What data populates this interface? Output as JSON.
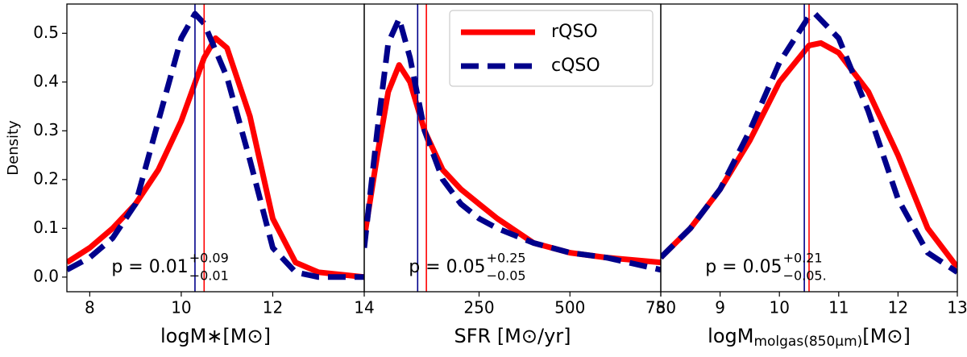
{
  "chart_data": [
    {
      "type": "line",
      "ylabel": "Density",
      "xlabel": [
        "logM∗[M⊙]"
      ],
      "xlim": [
        7.5,
        14
      ],
      "xticks": [
        8,
        10,
        12,
        14
      ],
      "ylim": [
        -0.03,
        0.56
      ],
      "yticks": [
        {
          "value": 0,
          "label": "0.0"
        },
        0.1,
        0.2,
        0.3,
        0.4,
        0.5
      ],
      "annotation": {
        "text": "p = 0.01",
        "sup": "+0.09",
        "sub": "−0.01"
      },
      "series": [
        {
          "name": "rQSO",
          "color": "#ff0000",
          "linestyle": "solid",
          "median": 10.5,
          "x": [
            7.5,
            8,
            8.5,
            9,
            9.5,
            10,
            10.5,
            10.75,
            11,
            11.5,
            12,
            12.5,
            13,
            14
          ],
          "values": [
            0.03,
            0.06,
            0.1,
            0.15,
            0.22,
            0.32,
            0.45,
            0.49,
            0.47,
            0.33,
            0.12,
            0.03,
            0.01,
            0.0
          ]
        },
        {
          "name": "cQSO",
          "color": "#00008b",
          "linestyle": "dashed",
          "median": 10.3,
          "x": [
            7.5,
            8,
            8.5,
            9,
            9.5,
            10,
            10.3,
            10.5,
            11,
            11.5,
            12,
            12.5,
            13,
            14
          ],
          "values": [
            0.015,
            0.04,
            0.08,
            0.15,
            0.32,
            0.49,
            0.54,
            0.52,
            0.41,
            0.24,
            0.06,
            0.01,
            0.0,
            0.0
          ]
        }
      ]
    },
    {
      "type": "line",
      "xlabel": [
        "SFR [M⊙/yr]"
      ],
      "legend": "upper right",
      "xlim": [
        -66,
        750
      ],
      "xticks": [
        250,
        500,
        750
      ],
      "ylim": [
        -0.03,
        0.56
      ],
      "annotation": {
        "text": "p = 0.05",
        "sup": "+0.25",
        "sub": "−0.05"
      },
      "series": [
        {
          "name": "rQSO",
          "color": "#ff0000",
          "linestyle": "solid",
          "median": 105,
          "x": [
            -66,
            -30,
            0,
            30,
            60,
            100,
            150,
            200,
            250,
            300,
            400,
            500,
            600,
            750
          ],
          "values": [
            0.08,
            0.25,
            0.38,
            0.435,
            0.4,
            0.3,
            0.22,
            0.18,
            0.15,
            0.12,
            0.07,
            0.05,
            0.04,
            0.03
          ]
        },
        {
          "name": "cQSO",
          "color": "#00008b",
          "linestyle": "dashed",
          "median": 81,
          "x": [
            -66,
            -30,
            0,
            30,
            60,
            100,
            150,
            200,
            250,
            300,
            400,
            500,
            600,
            750
          ],
          "values": [
            0.06,
            0.3,
            0.48,
            0.53,
            0.45,
            0.3,
            0.2,
            0.15,
            0.12,
            0.1,
            0.07,
            0.05,
            0.04,
            0.015
          ]
        }
      ]
    },
    {
      "type": "line",
      "xlabel": [
        "logM",
        "molgas(850μm)",
        "[M⊙]"
      ],
      "xlim": [
        8,
        13
      ],
      "xticks": [
        8,
        9,
        10,
        11,
        12,
        13
      ],
      "ylim": [
        -0.03,
        0.56
      ],
      "annotation": {
        "text": "p = 0.05",
        "sup": "+0.21",
        "sub": "−0.05."
      },
      "series": [
        {
          "name": "rQSO",
          "color": "#ff0000",
          "linestyle": "solid",
          "median": 10.5,
          "x": [
            8,
            8.5,
            9,
            9.5,
            10,
            10.5,
            10.7,
            11,
            11.5,
            12,
            12.5,
            13
          ],
          "values": [
            0.04,
            0.1,
            0.18,
            0.28,
            0.4,
            0.475,
            0.48,
            0.46,
            0.38,
            0.25,
            0.1,
            0.02
          ]
        },
        {
          "name": "cQSO",
          "color": "#00008b",
          "linestyle": "dashed",
          "median": 10.42,
          "x": [
            8,
            8.5,
            9,
            9.5,
            10,
            10.5,
            10.6,
            11,
            11.5,
            12,
            12.5,
            13
          ],
          "values": [
            0.04,
            0.1,
            0.18,
            0.3,
            0.44,
            0.535,
            0.54,
            0.49,
            0.34,
            0.16,
            0.05,
            0.01
          ]
        }
      ]
    }
  ]
}
